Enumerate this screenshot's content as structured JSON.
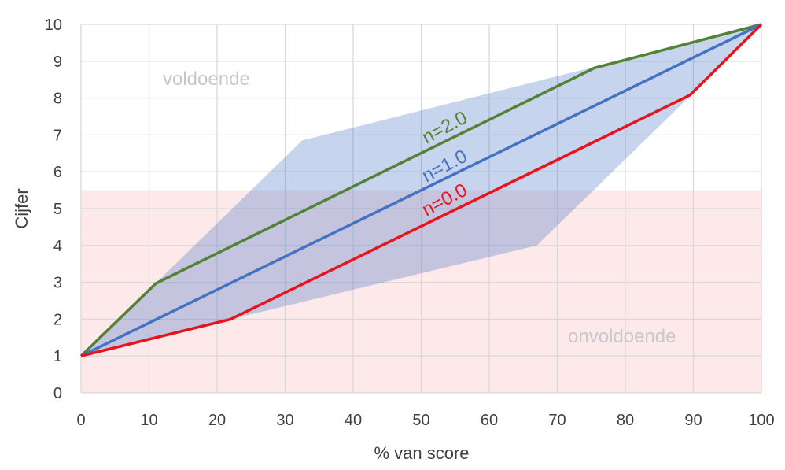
{
  "chart_data": {
    "type": "line",
    "xlabel": "% van score",
    "ylabel": "Cijfer",
    "xlim": [
      0,
      100
    ],
    "ylim": [
      0,
      10
    ],
    "xticks": [
      0,
      10,
      20,
      30,
      40,
      50,
      60,
      70,
      80,
      90,
      100
    ],
    "yticks": [
      0,
      1,
      2,
      3,
      4,
      5,
      6,
      7,
      8,
      9,
      10
    ],
    "grid": true,
    "regions": [
      {
        "label": "voldoende",
        "y_from": 5.5,
        "y_to": 10,
        "color": "#ffffff"
      },
      {
        "label": "onvoldoende",
        "y_from": 0,
        "y_to": 5.5,
        "color": "#fde8ea"
      }
    ],
    "envelope": {
      "color": "#4472c4",
      "opacity": 0.3,
      "x": [
        0,
        32.5,
        75.5,
        100,
        89.5,
        67,
        22
      ],
      "y": [
        1,
        6.85,
        8.85,
        10,
        8.05,
        4.0,
        2.0
      ]
    },
    "series": [
      {
        "name": "n=2.0",
        "color": "#548235",
        "x": [
          0,
          11,
          75.5,
          100
        ],
        "y": [
          1,
          2.97,
          8.82,
          10
        ]
      },
      {
        "name": "n=1.0",
        "color": "#4472c4",
        "x": [
          0,
          100
        ],
        "y": [
          1,
          10
        ]
      },
      {
        "name": "n=0.0",
        "color": "#e8141c",
        "x": [
          0,
          22,
          89.5,
          100
        ],
        "y": [
          1,
          2.0,
          8.08,
          10
        ]
      }
    ]
  }
}
